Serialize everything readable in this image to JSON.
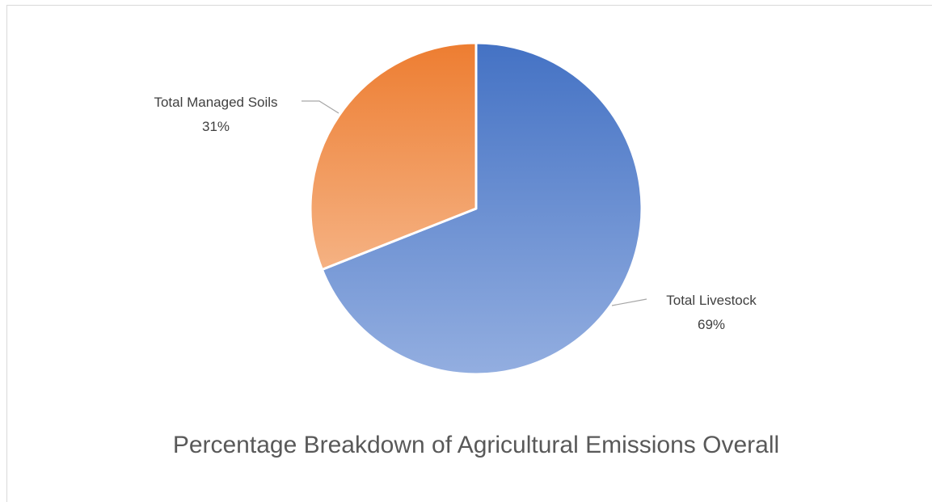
{
  "chart_data": {
    "type": "pie",
    "title": "Percentage Breakdown of Agricultural Emissions Overall",
    "start_angle_deg": 0,
    "direction": "clockwise",
    "slices": [
      {
        "name": "Total Livestock",
        "value": 69,
        "label": "69%",
        "color_top": "#4472c4",
        "color_bottom": "#93aee0"
      },
      {
        "name": "Total Managed Soils",
        "value": 31,
        "label": "31%",
        "color_top": "#ed7d31",
        "color_bottom": "#f5b283"
      }
    ],
    "legend": "none",
    "data_labels": "outside-with-leader-lines"
  }
}
